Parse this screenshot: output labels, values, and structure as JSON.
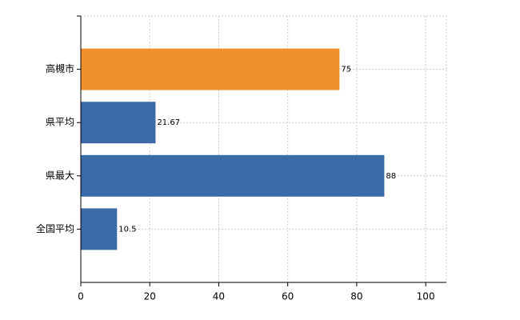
{
  "chart_data": {
    "type": "bar",
    "orientation": "horizontal",
    "categories": [
      "高槻市",
      "県平均",
      "県最大",
      "全国平均"
    ],
    "values": [
      75,
      21.67,
      88,
      10.5
    ],
    "colors": [
      "#f0902f",
      "#3a6aa8",
      "#3a6aa8",
      "#3a6aa8"
    ],
    "xlim": [
      0,
      106
    ],
    "xticks": [
      0,
      20,
      40,
      60,
      80,
      100
    ],
    "grid": true
  }
}
